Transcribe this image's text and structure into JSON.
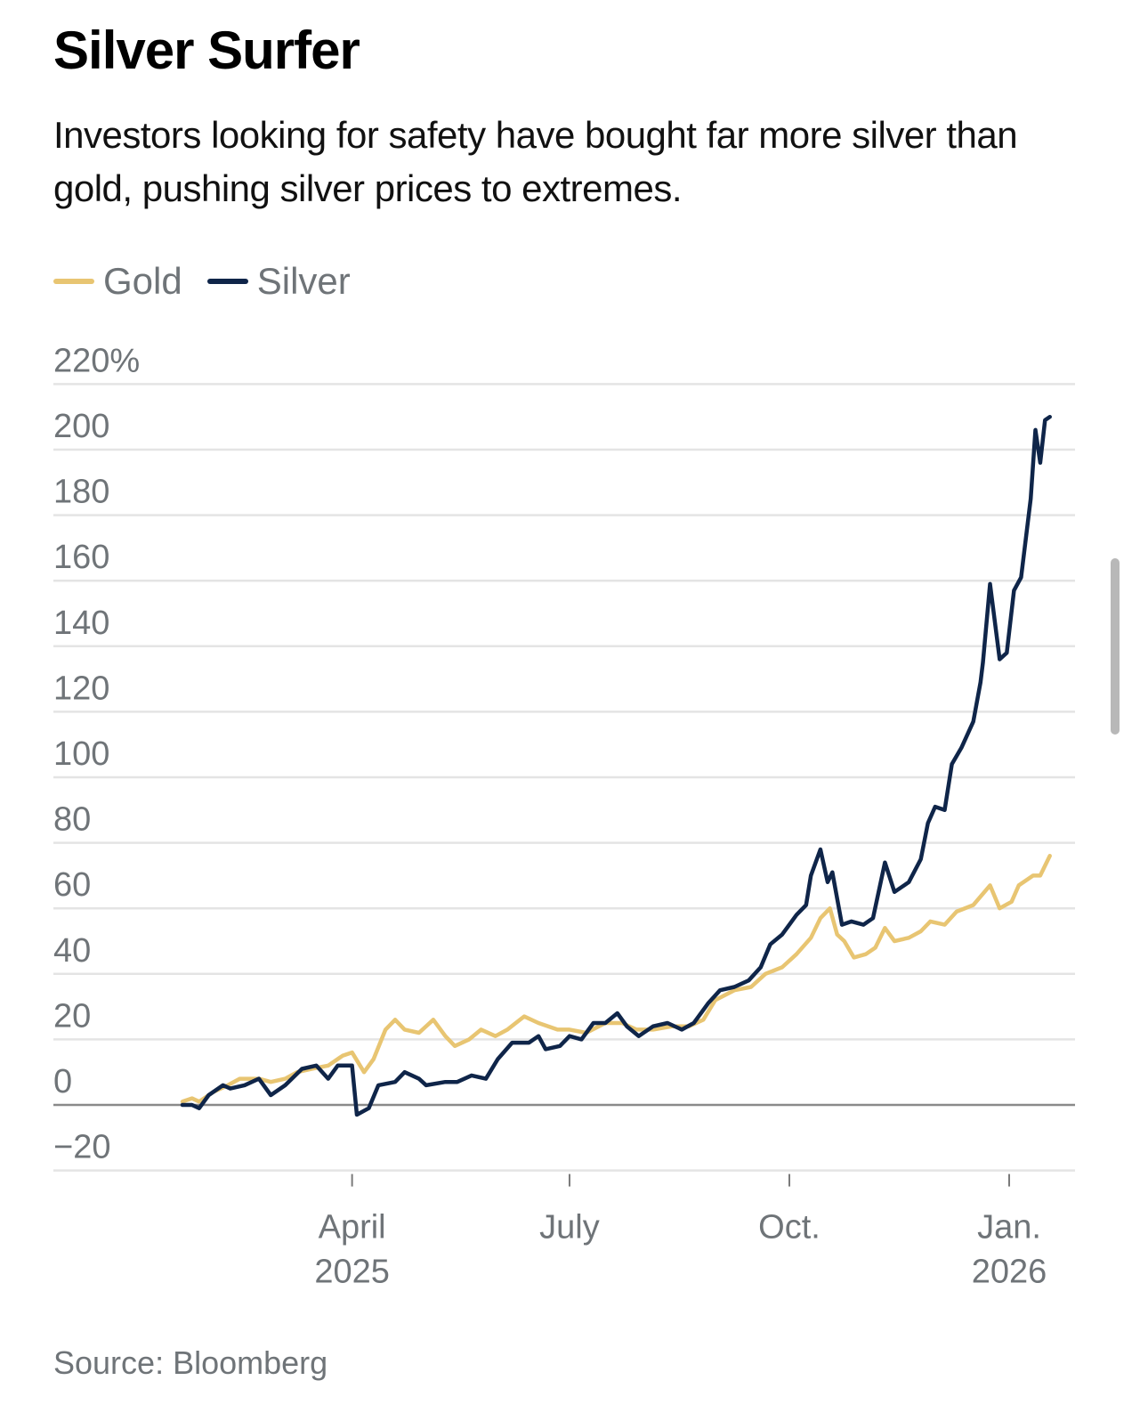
{
  "header": {
    "title": "Silver Surfer",
    "subtitle": "Investors looking for safety have bought far more silver than gold, pushing silver prices to extremes."
  },
  "footer": {
    "source": "Source: Bloomberg"
  },
  "colors": {
    "gold": "#e8c572",
    "silver": "#0f2549",
    "grid": "#e4e4e4",
    "zero_line": "#8a8a8a",
    "tick_text": "#6f7478"
  },
  "chart_data": {
    "type": "line",
    "title": "Silver Surfer",
    "subtitle": "Investors looking for safety have bought far more silver than gold, pushing silver prices to extremes.",
    "xlabel": "",
    "ylabel": "",
    "x_units": "days since 2025-01-20",
    "xlim": [
      0,
      387
    ],
    "ylim": [
      -20,
      220
    ],
    "y_ticks": [
      220,
      200,
      180,
      160,
      140,
      120,
      100,
      80,
      60,
      40,
      20,
      0,
      -20
    ],
    "y_tick_labels": [
      "220%",
      "200",
      "180",
      "160",
      "140",
      "120",
      "100",
      "80",
      "60",
      "40",
      "20",
      "0",
      "−20"
    ],
    "x_ticks": [
      {
        "x": 71,
        "label": "April",
        "sublabel": "2025"
      },
      {
        "x": 162,
        "label": "July",
        "sublabel": ""
      },
      {
        "x": 254,
        "label": "Oct.",
        "sublabel": ""
      },
      {
        "x": 346,
        "label": "Jan.",
        "sublabel": "2026"
      }
    ],
    "grid": true,
    "legend_position": "top-left",
    "series": [
      {
        "name": "Gold",
        "color": "#e8c572",
        "x": [
          0,
          4,
          7,
          13,
          19,
          24,
          32,
          37,
          43,
          48,
          54,
          61,
          67,
          71,
          76,
          80,
          85,
          89,
          93,
          99,
          105,
          110,
          114,
          120,
          125,
          131,
          136,
          143,
          149,
          157,
          162,
          169,
          177,
          184,
          190,
          197,
          205,
          212,
          218,
          223,
          231,
          238,
          244,
          251,
          257,
          263,
          267,
          271,
          274,
          277,
          281,
          286,
          290,
          294,
          298,
          304,
          309,
          313,
          319,
          324,
          331,
          338,
          342,
          347,
          350,
          356,
          359,
          363
        ],
        "y": [
          1,
          2,
          1,
          4,
          6,
          8,
          8,
          7,
          8,
          10,
          11,
          12,
          15,
          16,
          10,
          14,
          23,
          26,
          23,
          22,
          26,
          21,
          18,
          20,
          23,
          21,
          23,
          27,
          25,
          23,
          23,
          22,
          25,
          25,
          23,
          23,
          24,
          24,
          26,
          32,
          35,
          36,
          40,
          42,
          46,
          51,
          57,
          60,
          52,
          50,
          45,
          46,
          48,
          54,
          50,
          51,
          53,
          56,
          55,
          59,
          61,
          67,
          60,
          62,
          67,
          70,
          70,
          76
        ]
      },
      {
        "name": "Silver",
        "color": "#0f2549",
        "x": [
          0,
          4,
          7,
          11,
          17,
          20,
          26,
          32,
          37,
          43,
          50,
          56,
          61,
          65,
          71,
          73,
          78,
          82,
          89,
          93,
          99,
          102,
          110,
          115,
          121,
          127,
          132,
          138,
          145,
          149,
          152,
          158,
          162,
          167,
          172,
          177,
          182,
          186,
          191,
          197,
          203,
          209,
          214,
          220,
          225,
          231,
          237,
          242,
          246,
          251,
          257,
          261,
          263,
          267,
          270,
          272,
          276,
          280,
          285,
          289,
          294,
          298,
          304,
          309,
          312,
          315,
          319,
          322,
          326,
          331,
          334,
          335,
          338,
          342,
          345,
          348,
          351,
          355,
          357,
          359,
          361,
          363
        ],
        "y": [
          0,
          0,
          -1,
          3,
          6,
          5,
          6,
          8,
          3,
          6,
          11,
          12,
          8,
          12,
          12,
          -3,
          -1,
          6,
          7,
          10,
          8,
          6,
          7,
          7,
          9,
          8,
          14,
          19,
          19,
          21,
          17,
          18,
          21,
          20,
          25,
          25,
          28,
          24,
          21,
          24,
          25,
          23,
          25,
          31,
          35,
          36,
          38,
          42,
          49,
          52,
          58,
          61,
          70,
          78,
          68,
          71,
          55,
          56,
          55,
          57,
          74,
          65,
          68,
          75,
          86,
          91,
          90,
          104,
          109,
          117,
          129,
          135,
          159,
          136,
          138,
          157,
          161,
          185,
          206,
          196,
          209,
          210
        ]
      }
    ]
  }
}
